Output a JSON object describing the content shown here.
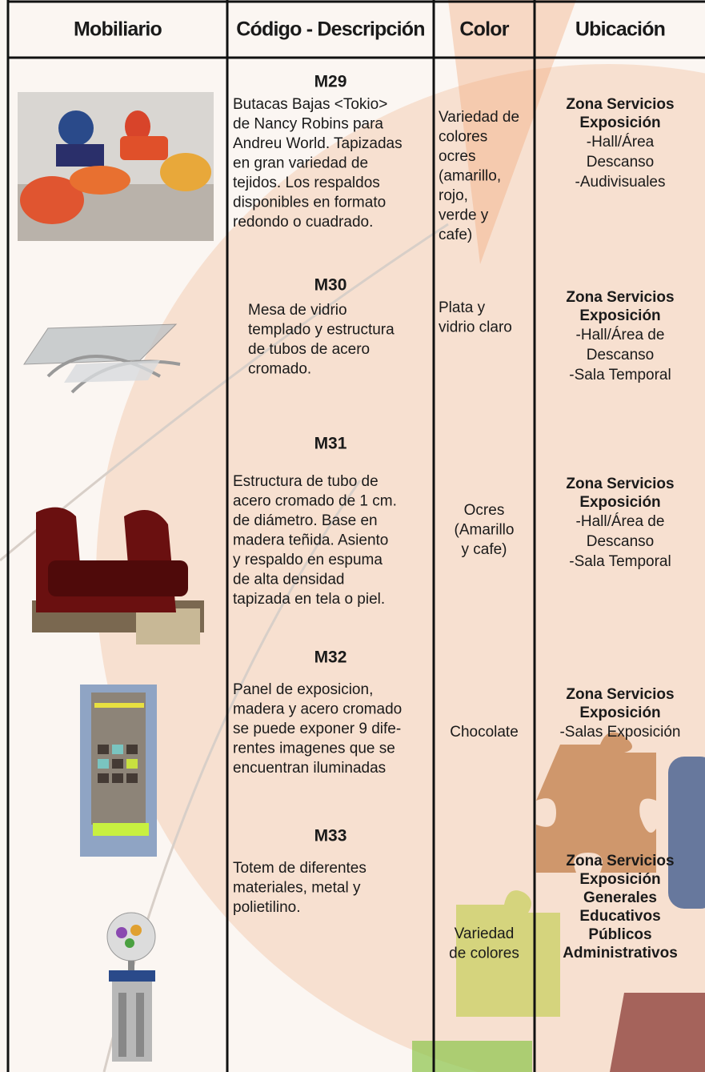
{
  "header": {
    "columns": [
      "Mobiliario",
      "Código - Descripción",
      "Color",
      "Ubicación"
    ]
  },
  "rows": [
    {
      "code": "M29",
      "description": [
        "Butacas Bajas <Tokio>",
        "de Nancy Robins para",
        "Andreu World. Tapizadas",
        "en gran variedad de",
        "tejidos. Los respaldos",
        "disponibles en formato",
        "redondo o cuadrado."
      ],
      "color": [
        "Variedad de",
        "colores",
        "ocres",
        "(amarillo,",
        "rojo,",
        "verde y",
        " cafe)"
      ],
      "location": {
        "heading": [
          "Zona Servicios",
          "Exposición"
        ],
        "items": [
          "-Hall/Área",
          "Descanso",
          "-Audivisuales"
        ]
      }
    },
    {
      "code": "M30",
      "description": [
        "Mesa de vidrio",
        "templado y estructura",
        "de tubos de acero",
        "cromado."
      ],
      "color": [
        "Plata y",
        "vidrio claro"
      ],
      "location": {
        "heading": [
          "Zona Servicios",
          "Exposición"
        ],
        "items": [
          "-Hall/Área de",
          "Descanso",
          "-Sala Temporal"
        ]
      }
    },
    {
      "code": "M31",
      "description": [
        "Estructura de tubo de",
        "acero cromado de 1 cm.",
        "de diámetro. Base en",
        "madera teñida. Asiento",
        "y respaldo en espuma",
        "de alta densidad",
        "tapizada en tela o piel."
      ],
      "color": [
        "Ocres",
        "(Amarillo",
        "y cafe)"
      ],
      "location": {
        "heading": [
          "Zona Servicios",
          "Exposición"
        ],
        "items": [
          "-Hall/Área de",
          "Descanso",
          "-Sala Temporal"
        ]
      }
    },
    {
      "code": "M32",
      "description": [
        "Panel de exposicion,",
        "madera y acero cromado",
        "se puede exponer 9 dife-",
        "rentes imagenes que se",
        "encuentran iluminadas"
      ],
      "color": [
        "Chocolate"
      ],
      "location": {
        "heading": [
          "Zona Servicios",
          "Exposición"
        ],
        "items": [
          "-Salas Exposición"
        ]
      }
    },
    {
      "code": "M33",
      "description": [
        "Totem de diferentes",
        "materiales, metal y",
        "polietilino."
      ],
      "color": [
        "Variedad",
        "de colores"
      ],
      "location": {
        "heading": [
          "Zona Servicios",
          "Exposición",
          "Generales",
          "Educativos",
          "Públicos",
          "Administrativos"
        ],
        "items": []
      }
    }
  ]
}
